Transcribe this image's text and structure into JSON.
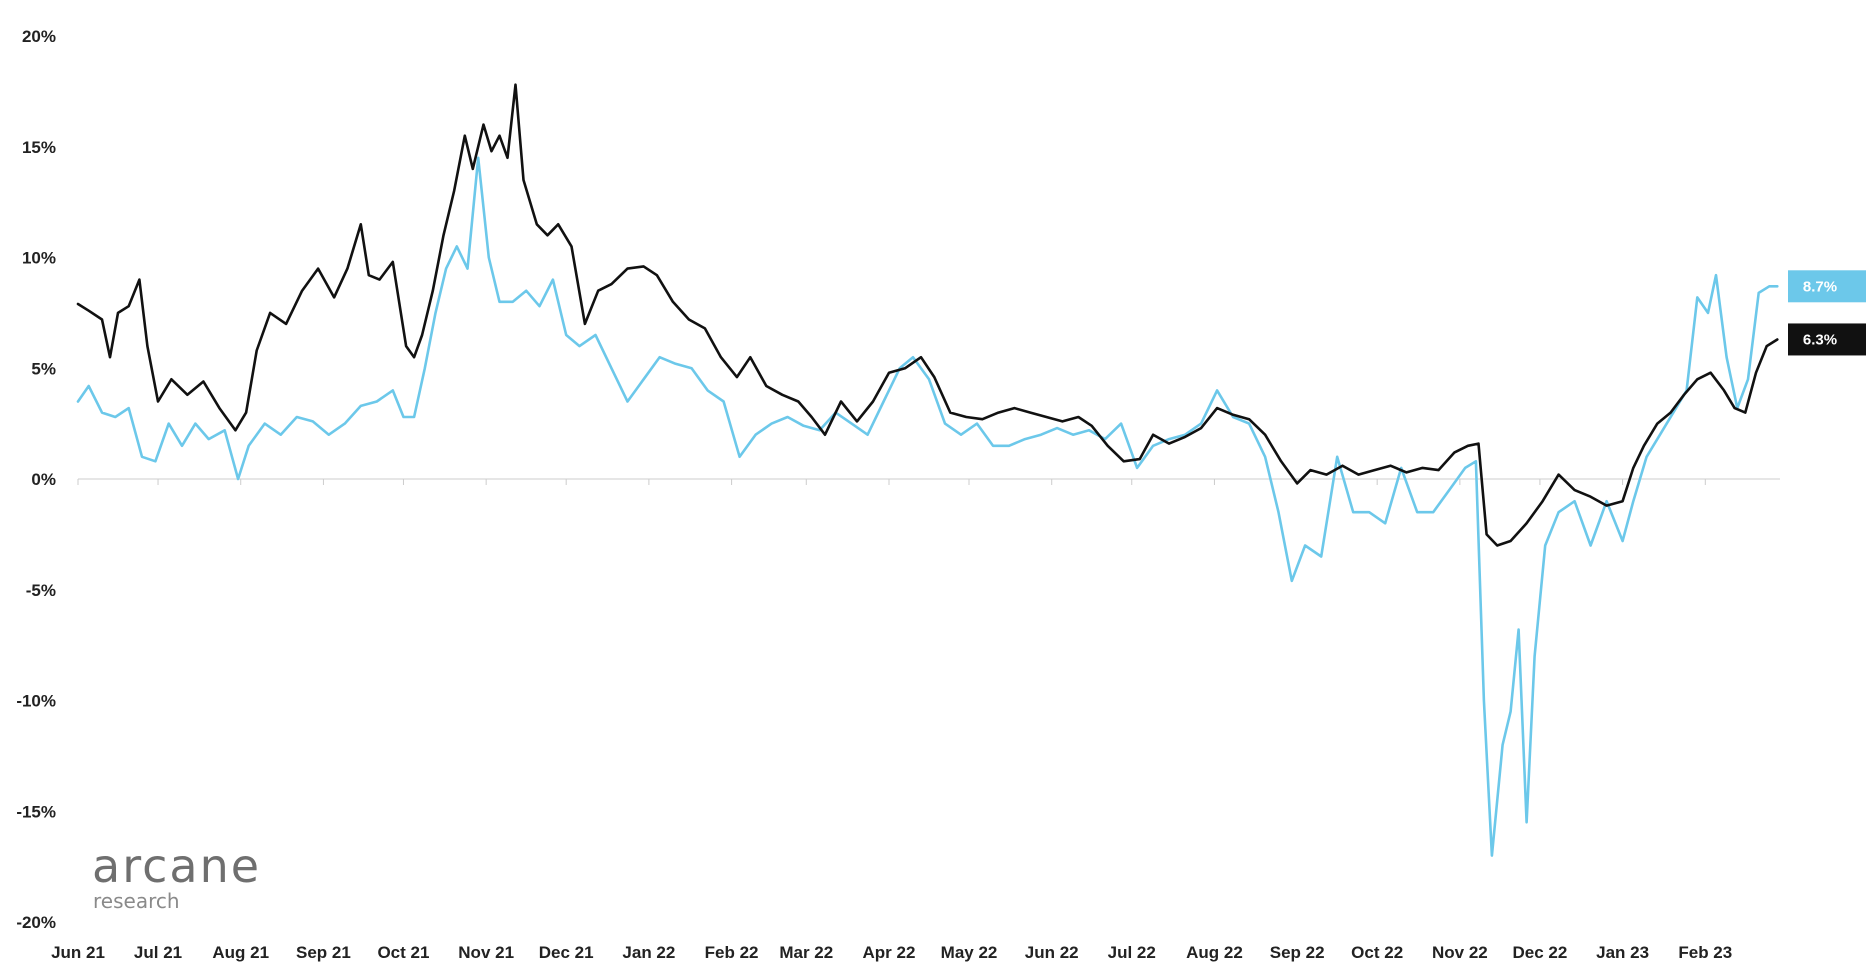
{
  "chart_data": {
    "type": "line",
    "title": "",
    "xlabel": "",
    "ylabel": "",
    "ylim": [
      -20,
      20
    ],
    "y_ticks": [
      "20%",
      "15%",
      "10%",
      "5%",
      "0%",
      "-5%",
      "-10%",
      "-15%",
      "-20%"
    ],
    "y_tick_values": [
      20,
      15,
      10,
      5,
      0,
      -5,
      -10,
      -15,
      -20
    ],
    "x_ticks": [
      "Jun 21",
      "Jul 21",
      "Aug 21",
      "Sep 21",
      "Oct 21",
      "Nov 21",
      "Dec 21",
      "Jan 22",
      "Feb 22",
      "Mar 22",
      "Apr 22",
      "May 22",
      "Jun 22",
      "Jul 22",
      "Aug 22",
      "Sep 22",
      "Oct 22",
      "Nov 22",
      "Dec 22",
      "Jan 23",
      "Feb 23"
    ],
    "x_tick_dates": [
      "2021-06-01",
      "2021-07-01",
      "2021-08-01",
      "2021-09-01",
      "2021-10-01",
      "2021-11-01",
      "2021-12-01",
      "2022-01-01",
      "2022-02-01",
      "2022-03-01",
      "2022-04-01",
      "2022-05-01",
      "2022-06-01",
      "2022-07-01",
      "2022-08-01",
      "2022-09-01",
      "2022-10-01",
      "2022-11-01",
      "2022-12-01",
      "2023-01-01",
      "2023-02-01"
    ],
    "xlim": [
      "2021-06-01",
      "2023-03-01"
    ],
    "grid": false,
    "end_labels": [
      {
        "text": "8.7%",
        "series": 1
      },
      {
        "text": "6.3%",
        "series": 0
      }
    ],
    "series": [
      {
        "color": "#111111",
        "points": [
          [
            "2021-06-01",
            7.9
          ],
          [
            "2021-06-05",
            7.6
          ],
          [
            "2021-06-10",
            7.2
          ],
          [
            "2021-06-13",
            5.5
          ],
          [
            "2021-06-16",
            7.5
          ],
          [
            "2021-06-20",
            7.8
          ],
          [
            "2021-06-24",
            9.0
          ],
          [
            "2021-06-27",
            6.0
          ],
          [
            "2021-07-01",
            3.5
          ],
          [
            "2021-07-06",
            4.5
          ],
          [
            "2021-07-12",
            3.8
          ],
          [
            "2021-07-18",
            4.4
          ],
          [
            "2021-07-24",
            3.2
          ],
          [
            "2021-07-30",
            2.2
          ],
          [
            "2021-08-03",
            3.0
          ],
          [
            "2021-08-07",
            5.8
          ],
          [
            "2021-08-12",
            7.5
          ],
          [
            "2021-08-18",
            7.0
          ],
          [
            "2021-08-24",
            8.5
          ],
          [
            "2021-08-30",
            9.5
          ],
          [
            "2021-09-05",
            8.2
          ],
          [
            "2021-09-10",
            9.5
          ],
          [
            "2021-09-15",
            11.5
          ],
          [
            "2021-09-18",
            9.2
          ],
          [
            "2021-09-22",
            9.0
          ],
          [
            "2021-09-27",
            9.8
          ],
          [
            "2021-10-02",
            6.0
          ],
          [
            "2021-10-05",
            5.5
          ],
          [
            "2021-10-08",
            6.5
          ],
          [
            "2021-10-12",
            8.5
          ],
          [
            "2021-10-16",
            11.0
          ],
          [
            "2021-10-20",
            13.0
          ],
          [
            "2021-10-24",
            15.5
          ],
          [
            "2021-10-27",
            14.0
          ],
          [
            "2021-10-31",
            16.0
          ],
          [
            "2021-11-03",
            14.8
          ],
          [
            "2021-11-06",
            15.5
          ],
          [
            "2021-11-09",
            14.5
          ],
          [
            "2021-11-12",
            17.8
          ],
          [
            "2021-11-15",
            13.5
          ],
          [
            "2021-11-20",
            11.5
          ],
          [
            "2021-11-24",
            11.0
          ],
          [
            "2021-11-28",
            11.5
          ],
          [
            "2021-12-03",
            10.5
          ],
          [
            "2021-12-08",
            7.0
          ],
          [
            "2021-12-13",
            8.5
          ],
          [
            "2021-12-18",
            8.8
          ],
          [
            "2021-12-24",
            9.5
          ],
          [
            "2021-12-30",
            9.6
          ],
          [
            "2022-01-04",
            9.2
          ],
          [
            "2022-01-10",
            8.0
          ],
          [
            "2022-01-16",
            7.2
          ],
          [
            "2022-01-22",
            6.8
          ],
          [
            "2022-01-28",
            5.5
          ],
          [
            "2022-02-03",
            4.6
          ],
          [
            "2022-02-08",
            5.5
          ],
          [
            "2022-02-14",
            4.2
          ],
          [
            "2022-02-20",
            3.8
          ],
          [
            "2022-02-26",
            3.5
          ],
          [
            "2022-03-03",
            2.8
          ],
          [
            "2022-03-08",
            2.0
          ],
          [
            "2022-03-14",
            3.5
          ],
          [
            "2022-03-20",
            2.6
          ],
          [
            "2022-03-26",
            3.5
          ],
          [
            "2022-04-01",
            4.8
          ],
          [
            "2022-04-07",
            5.0
          ],
          [
            "2022-04-13",
            5.5
          ],
          [
            "2022-04-18",
            4.6
          ],
          [
            "2022-04-24",
            3.0
          ],
          [
            "2022-04-30",
            2.8
          ],
          [
            "2022-05-06",
            2.7
          ],
          [
            "2022-05-12",
            3.0
          ],
          [
            "2022-05-18",
            3.2
          ],
          [
            "2022-05-24",
            3.0
          ],
          [
            "2022-05-30",
            2.8
          ],
          [
            "2022-06-05",
            2.6
          ],
          [
            "2022-06-11",
            2.8
          ],
          [
            "2022-06-16",
            2.4
          ],
          [
            "2022-06-22",
            1.5
          ],
          [
            "2022-06-28",
            0.8
          ],
          [
            "2022-07-04",
            0.9
          ],
          [
            "2022-07-09",
            2.0
          ],
          [
            "2022-07-15",
            1.6
          ],
          [
            "2022-07-21",
            1.9
          ],
          [
            "2022-07-27",
            2.3
          ],
          [
            "2022-08-02",
            3.2
          ],
          [
            "2022-08-08",
            2.9
          ],
          [
            "2022-08-14",
            2.7
          ],
          [
            "2022-08-20",
            2.0
          ],
          [
            "2022-08-26",
            0.8
          ],
          [
            "2022-09-01",
            -0.2
          ],
          [
            "2022-09-06",
            0.4
          ],
          [
            "2022-09-12",
            0.2
          ],
          [
            "2022-09-18",
            0.6
          ],
          [
            "2022-09-24",
            0.2
          ],
          [
            "2022-09-30",
            0.4
          ],
          [
            "2022-10-06",
            0.6
          ],
          [
            "2022-10-12",
            0.3
          ],
          [
            "2022-10-18",
            0.5
          ],
          [
            "2022-10-24",
            0.4
          ],
          [
            "2022-10-30",
            1.2
          ],
          [
            "2022-11-04",
            1.5
          ],
          [
            "2022-11-08",
            1.6
          ],
          [
            "2022-11-11",
            -2.5
          ],
          [
            "2022-11-15",
            -3.0
          ],
          [
            "2022-11-20",
            -2.8
          ],
          [
            "2022-11-26",
            -2.0
          ],
          [
            "2022-12-02",
            -1.0
          ],
          [
            "2022-12-08",
            0.2
          ],
          [
            "2022-12-14",
            -0.5
          ],
          [
            "2022-12-20",
            -0.8
          ],
          [
            "2022-12-26",
            -1.2
          ],
          [
            "2023-01-01",
            -1.0
          ],
          [
            "2023-01-05",
            0.5
          ],
          [
            "2023-01-09",
            1.5
          ],
          [
            "2023-01-14",
            2.5
          ],
          [
            "2023-01-19",
            3.0
          ],
          [
            "2023-01-24",
            3.8
          ],
          [
            "2023-01-29",
            4.5
          ],
          [
            "2023-02-03",
            4.8
          ],
          [
            "2023-02-08",
            4.0
          ],
          [
            "2023-02-12",
            3.2
          ],
          [
            "2023-02-16",
            3.0
          ],
          [
            "2023-02-20",
            4.8
          ],
          [
            "2023-02-24",
            6.0
          ],
          [
            "2023-02-28",
            6.3
          ]
        ]
      },
      {
        "color": "#6cc8ea",
        "points": [
          [
            "2021-06-01",
            3.5
          ],
          [
            "2021-06-05",
            4.2
          ],
          [
            "2021-06-10",
            3.0
          ],
          [
            "2021-06-15",
            2.8
          ],
          [
            "2021-06-20",
            3.2
          ],
          [
            "2021-06-25",
            1.0
          ],
          [
            "2021-06-30",
            0.8
          ],
          [
            "2021-07-05",
            2.5
          ],
          [
            "2021-07-10",
            1.5
          ],
          [
            "2021-07-15",
            2.5
          ],
          [
            "2021-07-20",
            1.8
          ],
          [
            "2021-07-26",
            2.2
          ],
          [
            "2021-07-31",
            0.0
          ],
          [
            "2021-08-04",
            1.5
          ],
          [
            "2021-08-10",
            2.5
          ],
          [
            "2021-08-16",
            2.0
          ],
          [
            "2021-08-22",
            2.8
          ],
          [
            "2021-08-28",
            2.6
          ],
          [
            "2021-09-03",
            2.0
          ],
          [
            "2021-09-09",
            2.5
          ],
          [
            "2021-09-15",
            3.3
          ],
          [
            "2021-09-21",
            3.5
          ],
          [
            "2021-09-27",
            4.0
          ],
          [
            "2021-10-01",
            2.8
          ],
          [
            "2021-10-05",
            2.8
          ],
          [
            "2021-10-09",
            5.0
          ],
          [
            "2021-10-13",
            7.5
          ],
          [
            "2021-10-17",
            9.5
          ],
          [
            "2021-10-21",
            10.5
          ],
          [
            "2021-10-25",
            9.5
          ],
          [
            "2021-10-29",
            14.5
          ],
          [
            "2021-11-02",
            10.0
          ],
          [
            "2021-11-06",
            8.0
          ],
          [
            "2021-11-11",
            8.0
          ],
          [
            "2021-11-16",
            8.5
          ],
          [
            "2021-11-21",
            7.8
          ],
          [
            "2021-11-26",
            9.0
          ],
          [
            "2021-12-01",
            6.5
          ],
          [
            "2021-12-06",
            6.0
          ],
          [
            "2021-12-12",
            6.5
          ],
          [
            "2021-12-18",
            5.0
          ],
          [
            "2021-12-24",
            3.5
          ],
          [
            "2021-12-30",
            4.5
          ],
          [
            "2022-01-05",
            5.5
          ],
          [
            "2022-01-11",
            5.2
          ],
          [
            "2022-01-17",
            5.0
          ],
          [
            "2022-01-23",
            4.0
          ],
          [
            "2022-01-29",
            3.5
          ],
          [
            "2022-02-04",
            1.0
          ],
          [
            "2022-02-10",
            2.0
          ],
          [
            "2022-02-16",
            2.5
          ],
          [
            "2022-02-22",
            2.8
          ],
          [
            "2022-02-28",
            2.4
          ],
          [
            "2022-03-06",
            2.2
          ],
          [
            "2022-03-12",
            3.0
          ],
          [
            "2022-03-18",
            2.5
          ],
          [
            "2022-03-24",
            2.0
          ],
          [
            "2022-03-30",
            3.5
          ],
          [
            "2022-04-05",
            5.0
          ],
          [
            "2022-04-10",
            5.5
          ],
          [
            "2022-04-16",
            4.5
          ],
          [
            "2022-04-22",
            2.5
          ],
          [
            "2022-04-28",
            2.0
          ],
          [
            "2022-05-04",
            2.5
          ],
          [
            "2022-05-10",
            1.5
          ],
          [
            "2022-05-16",
            1.5
          ],
          [
            "2022-05-22",
            1.8
          ],
          [
            "2022-05-28",
            2.0
          ],
          [
            "2022-06-03",
            2.3
          ],
          [
            "2022-06-09",
            2.0
          ],
          [
            "2022-06-15",
            2.2
          ],
          [
            "2022-06-21",
            1.8
          ],
          [
            "2022-06-27",
            2.5
          ],
          [
            "2022-07-03",
            0.5
          ],
          [
            "2022-07-09",
            1.5
          ],
          [
            "2022-07-15",
            1.8
          ],
          [
            "2022-07-21",
            2.0
          ],
          [
            "2022-07-27",
            2.5
          ],
          [
            "2022-08-02",
            4.0
          ],
          [
            "2022-08-08",
            2.8
          ],
          [
            "2022-08-14",
            2.5
          ],
          [
            "2022-08-20",
            1.0
          ],
          [
            "2022-08-25",
            -1.5
          ],
          [
            "2022-08-30",
            -4.6
          ],
          [
            "2022-09-04",
            -3.0
          ],
          [
            "2022-09-10",
            -3.5
          ],
          [
            "2022-09-16",
            1.0
          ],
          [
            "2022-09-22",
            -1.5
          ],
          [
            "2022-09-28",
            -1.5
          ],
          [
            "2022-10-04",
            -2.0
          ],
          [
            "2022-10-10",
            0.5
          ],
          [
            "2022-10-16",
            -1.5
          ],
          [
            "2022-10-22",
            -1.5
          ],
          [
            "2022-10-28",
            -0.5
          ],
          [
            "2022-11-03",
            0.5
          ],
          [
            "2022-11-07",
            0.8
          ],
          [
            "2022-11-10",
            -10.0
          ],
          [
            "2022-11-13",
            -17.0
          ],
          [
            "2022-11-17",
            -12.0
          ],
          [
            "2022-11-20",
            -10.5
          ],
          [
            "2022-11-23",
            -6.8
          ],
          [
            "2022-11-26",
            -15.5
          ],
          [
            "2022-11-29",
            -8.0
          ],
          [
            "2022-12-03",
            -3.0
          ],
          [
            "2022-12-08",
            -1.5
          ],
          [
            "2022-12-14",
            -1.0
          ],
          [
            "2022-12-20",
            -3.0
          ],
          [
            "2022-12-26",
            -1.0
          ],
          [
            "2023-01-01",
            -2.8
          ],
          [
            "2023-01-05",
            -1.0
          ],
          [
            "2023-01-10",
            1.0
          ],
          [
            "2023-01-15",
            2.0
          ],
          [
            "2023-01-20",
            3.0
          ],
          [
            "2023-01-25",
            4.0
          ],
          [
            "2023-01-29",
            8.2
          ],
          [
            "2023-02-02",
            7.5
          ],
          [
            "2023-02-05",
            9.2
          ],
          [
            "2023-02-09",
            5.5
          ],
          [
            "2023-02-13",
            3.2
          ],
          [
            "2023-02-17",
            4.5
          ],
          [
            "2023-02-21",
            8.4
          ],
          [
            "2023-02-25",
            8.7
          ],
          [
            "2023-02-28",
            8.7
          ]
        ]
      }
    ]
  },
  "logo": {
    "name": "arcane",
    "sub": "research"
  }
}
